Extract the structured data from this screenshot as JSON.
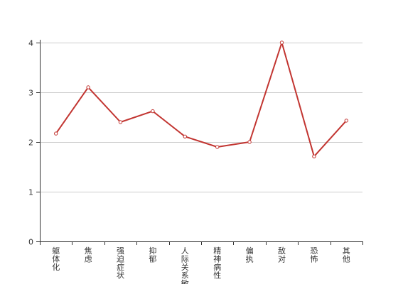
{
  "chart_data": {
    "type": "line",
    "title": "",
    "xlabel": "",
    "ylabel": "",
    "categories": [
      "躯体化",
      "焦虑",
      "强迫症状",
      "抑郁",
      "人际关系敏感",
      "精神病性",
      "偏执",
      "敌对",
      "恐怖",
      "其他"
    ],
    "series": [
      {
        "values": [
          2.17,
          3.1,
          2.4,
          2.62,
          2.11,
          1.9,
          2.0,
          4.0,
          1.71,
          2.43
        ],
        "color": "#c23531"
      }
    ],
    "ylim": [
      0,
      4
    ],
    "yticks": [
      "0",
      "1",
      "2",
      "3",
      "4"
    ],
    "grid": true,
    "legend": "none",
    "colors": {
      "grid": "#cccccc",
      "axis": "#333333",
      "text": "#333333"
    }
  }
}
